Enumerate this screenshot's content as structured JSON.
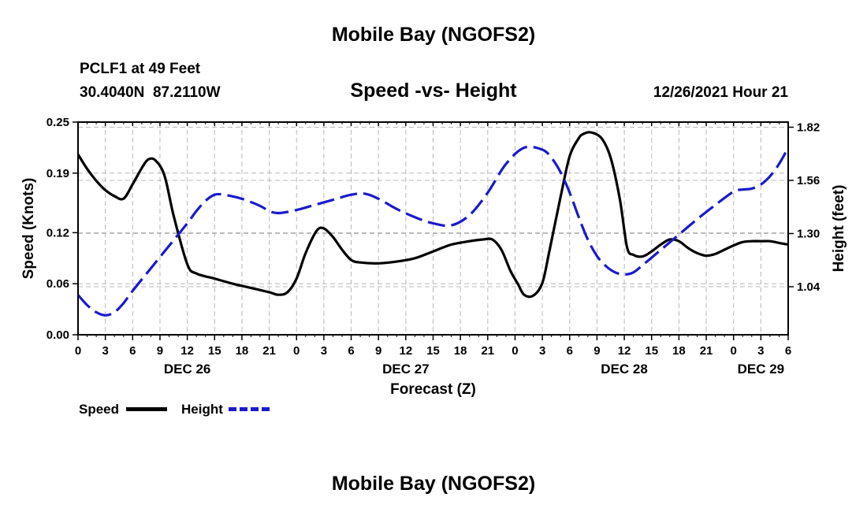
{
  "header": {
    "title": "Mobile Bay (NGOFS2)",
    "station_line": "PCLF1 at 49 Feet",
    "coords_line": "30.4040N  87.2110W",
    "subtitle": "Speed -vs- Height",
    "run_time": "12/26/2021 Hour 21"
  },
  "footer": {
    "title": "Mobile Bay (NGOFS2)"
  },
  "legend": {
    "speed_label": "Speed",
    "height_label": "Height"
  },
  "colors": {
    "speed": "#000000",
    "height": "#1a1acc",
    "grid": "#b8b8b8"
  },
  "chart_data": {
    "type": "line",
    "title": "Speed -vs- Height",
    "xlabel": "Forecast (Z)",
    "ylabel": "Speed (Knots)",
    "y2label": "Height (feet)",
    "x_unit": "hours from 12/26 00Z",
    "xlim": [
      0,
      78
    ],
    "ylim": [
      0,
      0.25
    ],
    "y2lim": [
      0.805,
      1.845
    ],
    "x_ticks": [
      0,
      3,
      6,
      9,
      12,
      15,
      18,
      21,
      24,
      27,
      30,
      33,
      36,
      39,
      42,
      45,
      48,
      51,
      54,
      57,
      60,
      63,
      66,
      69,
      72,
      75,
      78
    ],
    "x_tick_labels": [
      "0",
      "3",
      "6",
      "9",
      "12",
      "15",
      "18",
      "21",
      "0",
      "3",
      "6",
      "9",
      "12",
      "15",
      "18",
      "21",
      "0",
      "3",
      "6",
      "9",
      "12",
      "15",
      "18",
      "21",
      "0",
      "3",
      "6"
    ],
    "day_labels": [
      {
        "x": 12,
        "label": "DEC 26"
      },
      {
        "x": 36,
        "label": "DEC 27"
      },
      {
        "x": 60,
        "label": "DEC 28"
      },
      {
        "x": 75,
        "label": "DEC 29"
      }
    ],
    "y_ticks": [
      0.0,
      0.06,
      0.12,
      0.19,
      0.25
    ],
    "y_tick_labels": [
      "0.00",
      "0.06",
      "0.12",
      "0.19",
      "0.25"
    ],
    "y2_ticks": [
      1.04,
      1.3,
      1.56,
      1.82
    ],
    "y2_tick_labels": [
      "1.04",
      "1.30",
      "1.56",
      "1.82"
    ],
    "grid": true,
    "series": [
      {
        "name": "Speed",
        "axis": "left",
        "style": "solid",
        "x": [
          0,
          1,
          2,
          3,
          4,
          5,
          6,
          7,
          7.7,
          8.5,
          9.5,
          10.5,
          12,
          13,
          15,
          17,
          19,
          21,
          22,
          23,
          24,
          25,
          26.2,
          27,
          28,
          29,
          30,
          31,
          33,
          35,
          37,
          39,
          41,
          43,
          44.5,
          45.5,
          46.5,
          47.5,
          48.3,
          49,
          50,
          51,
          51.8,
          53,
          54,
          55,
          55.5,
          56.3,
          57.5,
          58.5,
          59.5,
          60.3,
          61,
          62,
          63,
          64,
          65,
          66,
          67,
          68,
          69,
          70,
          71,
          72,
          73,
          74,
          75,
          76,
          77,
          78
        ],
        "values": [
          0.212,
          0.195,
          0.181,
          0.17,
          0.163,
          0.16,
          0.177,
          0.196,
          0.206,
          0.205,
          0.187,
          0.14,
          0.083,
          0.072,
          0.066,
          0.06,
          0.055,
          0.05,
          0.047,
          0.05,
          0.066,
          0.096,
          0.122,
          0.125,
          0.115,
          0.1,
          0.088,
          0.085,
          0.084,
          0.086,
          0.09,
          0.098,
          0.106,
          0.11,
          0.112,
          0.112,
          0.1,
          0.075,
          0.06,
          0.047,
          0.046,
          0.061,
          0.1,
          0.162,
          0.21,
          0.231,
          0.236,
          0.238,
          0.231,
          0.208,
          0.16,
          0.103,
          0.094,
          0.092,
          0.098,
          0.106,
          0.112,
          0.11,
          0.102,
          0.096,
          0.093,
          0.095,
          0.1,
          0.105,
          0.109,
          0.11,
          0.11,
          0.11,
          0.108,
          0.106
        ]
      },
      {
        "name": "Height",
        "axis": "right",
        "style": "dashed",
        "x": [
          0,
          1,
          2,
          3,
          4,
          5,
          6,
          8,
          10,
          12,
          13,
          14,
          15,
          16,
          18,
          20,
          21,
          22,
          24,
          26,
          28,
          30,
          31.5,
          33,
          35,
          37,
          39,
          41,
          43,
          45,
          47,
          49,
          51,
          52,
          53,
          54,
          55,
          56,
          57,
          58,
          59,
          60,
          61,
          62,
          64,
          66,
          68,
          70,
          72,
          73,
          74,
          75,
          76,
          77,
          78
        ],
        "values": [
          1.0,
          0.95,
          0.915,
          0.9,
          0.915,
          0.96,
          1.02,
          1.13,
          1.24,
          1.35,
          1.41,
          1.46,
          1.49,
          1.49,
          1.47,
          1.435,
          1.41,
          1.4,
          1.415,
          1.44,
          1.465,
          1.49,
          1.495,
          1.47,
          1.42,
          1.38,
          1.35,
          1.34,
          1.39,
          1.5,
          1.64,
          1.72,
          1.71,
          1.67,
          1.6,
          1.5,
          1.38,
          1.27,
          1.19,
          1.14,
          1.11,
          1.1,
          1.11,
          1.145,
          1.22,
          1.295,
          1.37,
          1.44,
          1.505,
          1.515,
          1.52,
          1.54,
          1.58,
          1.64,
          1.72
        ]
      }
    ]
  }
}
